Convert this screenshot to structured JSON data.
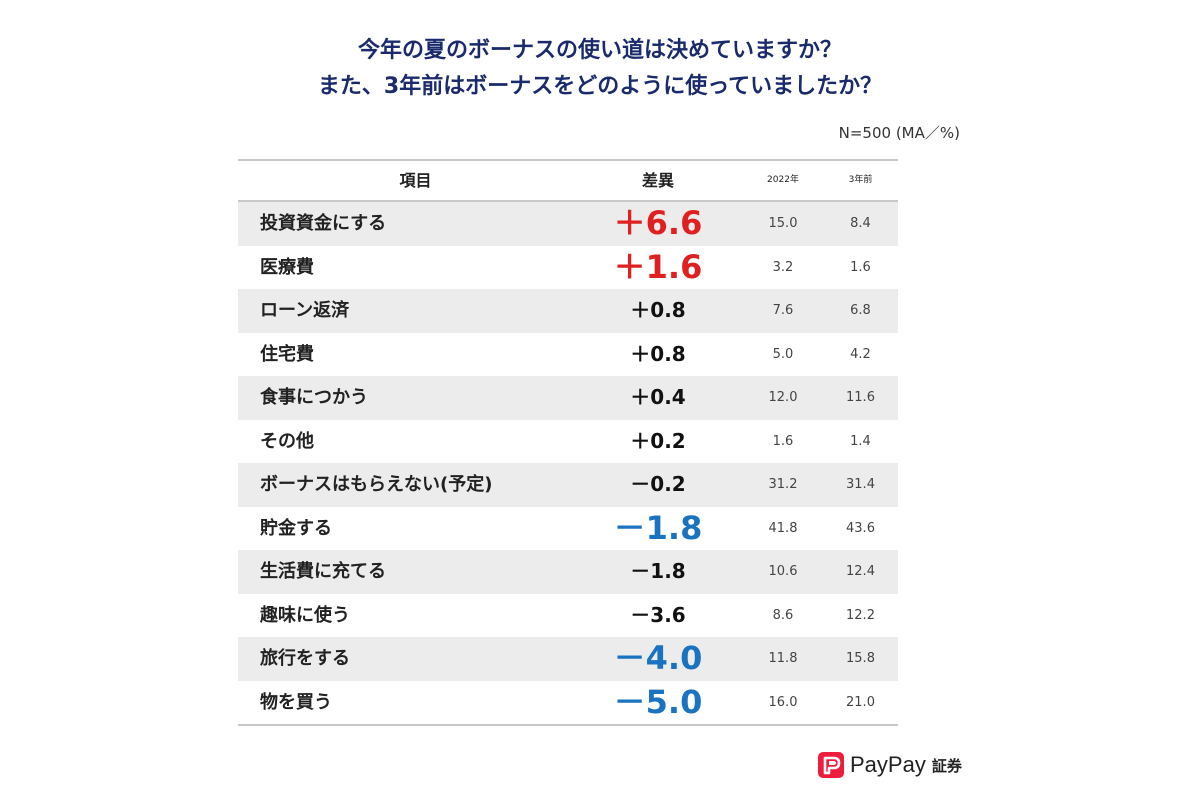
{
  "title": {
    "line1": "今年の夏のボーナスの使い道は決めていますか？",
    "line2": "また、3年前はボーナスをどのように使っていましたか？"
  },
  "note": "N=500 (MA／%)",
  "headers": {
    "item": "項目",
    "diff": "差異",
    "year1": "2022年",
    "year2": "3年前"
  },
  "colors": {
    "title": "#1a2a6c",
    "positive_highlight": "#e02020",
    "negative_highlight": "#1a73c0",
    "row_shade": "#ececec",
    "brand": "#ee1d3b"
  },
  "chart_data": {
    "type": "table",
    "title": "今年の夏のボーナスの使い道は決めていますか？ また、3年前はボーナスをどのように使っていましたか？",
    "columns": [
      "項目",
      "差異",
      "2022年",
      "3年前"
    ],
    "rows": [
      {
        "item": "投資資金にする",
        "diff": "＋6.6",
        "y2022": "15.0",
        "y3ago": "8.4",
        "highlight": "positive"
      },
      {
        "item": "医療費",
        "diff": "＋1.6",
        "y2022": "3.2",
        "y3ago": "1.6",
        "highlight": "positive"
      },
      {
        "item": "ローン返済",
        "diff": "＋0.8",
        "y2022": "7.6",
        "y3ago": "6.8",
        "highlight": "none"
      },
      {
        "item": "住宅費",
        "diff": "＋0.8",
        "y2022": "5.0",
        "y3ago": "4.2",
        "highlight": "none"
      },
      {
        "item": "食事につかう",
        "diff": "＋0.4",
        "y2022": "12.0",
        "y3ago": "11.6",
        "highlight": "none"
      },
      {
        "item": "その他",
        "diff": "＋0.2",
        "y2022": "1.6",
        "y3ago": "1.4",
        "highlight": "none"
      },
      {
        "item": "ボーナスはもらえない(予定)",
        "diff": "－0.2",
        "y2022": "31.2",
        "y3ago": "31.4",
        "highlight": "none"
      },
      {
        "item": "貯金する",
        "diff": "－1.8",
        "y2022": "41.8",
        "y3ago": "43.6",
        "highlight": "negative"
      },
      {
        "item": "生活費に充てる",
        "diff": "－1.8",
        "y2022": "10.6",
        "y3ago": "12.4",
        "highlight": "none"
      },
      {
        "item": "趣味に使う",
        "diff": "－3.6",
        "y2022": "8.6",
        "y3ago": "12.2",
        "highlight": "none"
      },
      {
        "item": "旅行をする",
        "diff": "－4.0",
        "y2022": "11.8",
        "y3ago": "15.8",
        "highlight": "negative"
      },
      {
        "item": "物を買う",
        "diff": "－5.0",
        "y2022": "16.0",
        "y3ago": "21.0",
        "highlight": "negative"
      }
    ]
  },
  "logo": {
    "text": "PayPay",
    "sub": "証券",
    "icon": "paypay-logo-icon"
  }
}
